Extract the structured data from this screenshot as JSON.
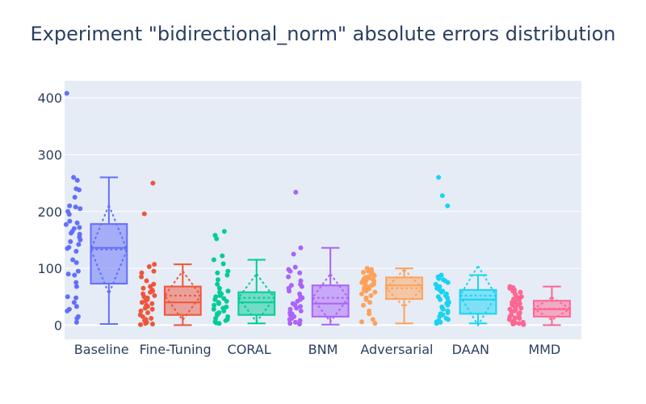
{
  "chart_data": {
    "type": "box",
    "title": "Experiment \"bidirectional_norm\" absolute errors distribution",
    "xlabel": "",
    "ylabel": "",
    "ylim": [
      -25,
      430
    ],
    "yticks": [
      0,
      100,
      200,
      300,
      400
    ],
    "grid": true,
    "legend": "none",
    "background": "#e5ecf6",
    "categories": [
      "Baseline",
      "Fine-Tuning",
      "CORAL",
      "BNM",
      "Adversarial",
      "DAAN",
      "MMD"
    ],
    "series": [
      {
        "category": "Baseline",
        "color": "#636efa",
        "min": 2,
        "q1": 73,
        "median": 136,
        "q3": 178,
        "max": 260,
        "mean": 133,
        "sd": 78,
        "points": [
          408,
          260,
          255,
          240,
          238,
          225,
          210,
          208,
          205,
          200,
          195,
          183,
          180,
          177,
          172,
          170,
          165,
          162,
          160,
          155,
          150,
          147,
          142,
          137,
          135,
          130,
          115,
          110,
          95,
          90,
          88,
          75,
          68,
          50,
          48,
          40,
          33,
          28,
          25,
          15,
          12,
          5
        ]
      },
      {
        "category": "Fine-Tuning",
        "color": "#ef553b",
        "min": 0,
        "q1": 18,
        "median": 40,
        "q3": 68,
        "max": 107,
        "mean": 52,
        "sd": 43,
        "points": [
          250,
          196,
          107,
          103,
          95,
          92,
          85,
          78,
          72,
          68,
          65,
          62,
          60,
          58,
          55,
          52,
          50,
          48,
          45,
          43,
          40,
          38,
          35,
          33,
          30,
          28,
          25,
          22,
          18,
          15,
          12,
          10,
          8,
          5,
          3,
          2,
          1
        ]
      },
      {
        "category": "CORAL",
        "color": "#00cc96",
        "min": 3,
        "q1": 18,
        "median": 40,
        "q3": 58,
        "max": 115,
        "mean": 48,
        "sd": 42,
        "points": [
          165,
          158,
          152,
          122,
          115,
          108,
          95,
          92,
          88,
          80,
          72,
          65,
          60,
          58,
          55,
          52,
          50,
          47,
          45,
          42,
          40,
          38,
          35,
          32,
          30,
          28,
          25,
          22,
          20,
          18,
          15,
          12,
          10,
          8,
          6,
          4,
          3
        ]
      },
      {
        "category": "BNM",
        "color": "#ab63fa",
        "min": 1,
        "q1": 15,
        "median": 38,
        "q3": 70,
        "max": 136,
        "mean": 48,
        "sd": 42,
        "points": [
          234,
          136,
          125,
          102,
          98,
          95,
          92,
          85,
          78,
          72,
          70,
          68,
          65,
          60,
          55,
          50,
          48,
          45,
          42,
          38,
          35,
          33,
          30,
          28,
          25,
          22,
          20,
          18,
          15,
          12,
          10,
          8,
          5,
          3,
          2
        ]
      },
      {
        "category": "Adversarial",
        "color": "#ffa15a",
        "min": 3,
        "q1": 46,
        "median": 70,
        "q3": 84,
        "max": 100,
        "mean": 65,
        "sd": 33,
        "points": [
          100,
          98,
          96,
          95,
          93,
          92,
          90,
          88,
          87,
          85,
          84,
          83,
          82,
          80,
          79,
          78,
          77,
          75,
          74,
          72,
          70,
          68,
          66,
          64,
          62,
          60,
          58,
          55,
          52,
          48,
          45,
          40,
          35,
          25,
          20,
          10,
          6,
          3
        ]
      },
      {
        "category": "DAAN",
        "color": "#19d3f3",
        "min": 3,
        "q1": 20,
        "median": 45,
        "q3": 62,
        "max": 88,
        "mean": 52,
        "sd": 52,
        "points": [
          260,
          228,
          210,
          88,
          85,
          82,
          80,
          78,
          75,
          72,
          68,
          65,
          62,
          60,
          58,
          55,
          52,
          50,
          48,
          45,
          42,
          40,
          38,
          35,
          32,
          30,
          28,
          25,
          22,
          20,
          18,
          15,
          12,
          10,
          8,
          6,
          5,
          3
        ]
      },
      {
        "category": "MMD",
        "color": "#ff6692",
        "min": 0,
        "q1": 15,
        "median": 28,
        "q3": 43,
        "max": 68,
        "mean": 29,
        "sd": 20,
        "points": [
          68,
          66,
          65,
          62,
          60,
          58,
          55,
          52,
          50,
          48,
          46,
          44,
          42,
          40,
          38,
          36,
          35,
          33,
          32,
          30,
          28,
          27,
          25,
          24,
          22,
          20,
          18,
          17,
          15,
          13,
          12,
          10,
          8,
          6,
          5,
          4,
          3,
          2,
          1
        ]
      }
    ]
  }
}
